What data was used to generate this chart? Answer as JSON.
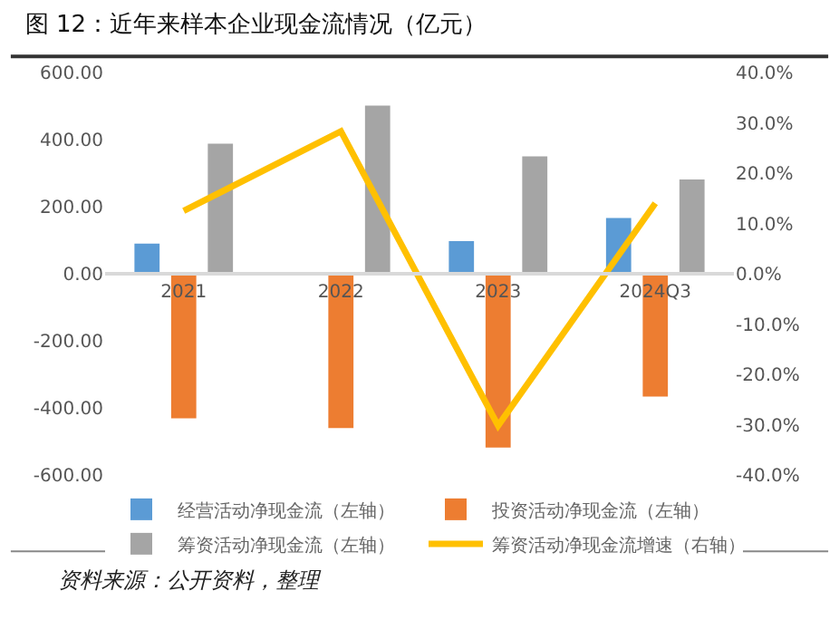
{
  "chart_data": {
    "type": "bar",
    "title": "图 12：近年来样本企业现金流情况（亿元）",
    "categories": [
      "2021",
      "2022",
      "2023",
      "2024Q3"
    ],
    "series": [
      {
        "name": "经营活动净现金流（左轴）",
        "color": "#5b9bd5",
        "values": [
          90,
          0,
          97,
          166
        ]
      },
      {
        "name": "投资活动净现金流（左轴）",
        "color": "#ed7d31",
        "values": [
          -431,
          -460,
          -518,
          -366
        ]
      },
      {
        "name": "筹资活动净现金流（左轴）",
        "color": "#a5a5a5",
        "values": [
          388,
          501,
          350,
          281
        ]
      },
      {
        "name": "筹资活动净现金流增速（右轴）",
        "color": "#ffc000",
        "type": "line",
        "axis": "y2",
        "values": [
          12.5,
          28.3,
          -30.2,
          14
        ]
      }
    ],
    "ylim": [
      -600,
      600
    ],
    "yticks": [
      {
        "value": -600,
        "label": "-600.00"
      },
      {
        "value": -400,
        "label": "-400.00"
      },
      {
        "value": -200,
        "label": "-200.00"
      },
      {
        "value": 0,
        "label": "0.00"
      },
      {
        "value": 200,
        "label": "200.00"
      },
      {
        "value": 400,
        "label": "400.00"
      },
      {
        "value": 600,
        "label": "600.00"
      }
    ],
    "y2lim": [
      -40,
      40
    ],
    "y2ticks": [
      {
        "value": -40,
        "label": "-40.0%"
      },
      {
        "value": -30,
        "label": "-30.0%"
      },
      {
        "value": -20,
        "label": "-20.0%"
      },
      {
        "value": -10,
        "label": "-10.0%"
      },
      {
        "value": 0,
        "label": "0.0%"
      },
      {
        "value": 10,
        "label": "10.0%"
      },
      {
        "value": 20,
        "label": "20.0%"
      },
      {
        "value": 30,
        "label": "30.0%"
      },
      {
        "value": 40,
        "label": "40.0%"
      }
    ],
    "grid": false,
    "legend": "bottom",
    "marker": "none",
    "annotations": [
      "资料来源：公开资料，整理"
    ]
  }
}
